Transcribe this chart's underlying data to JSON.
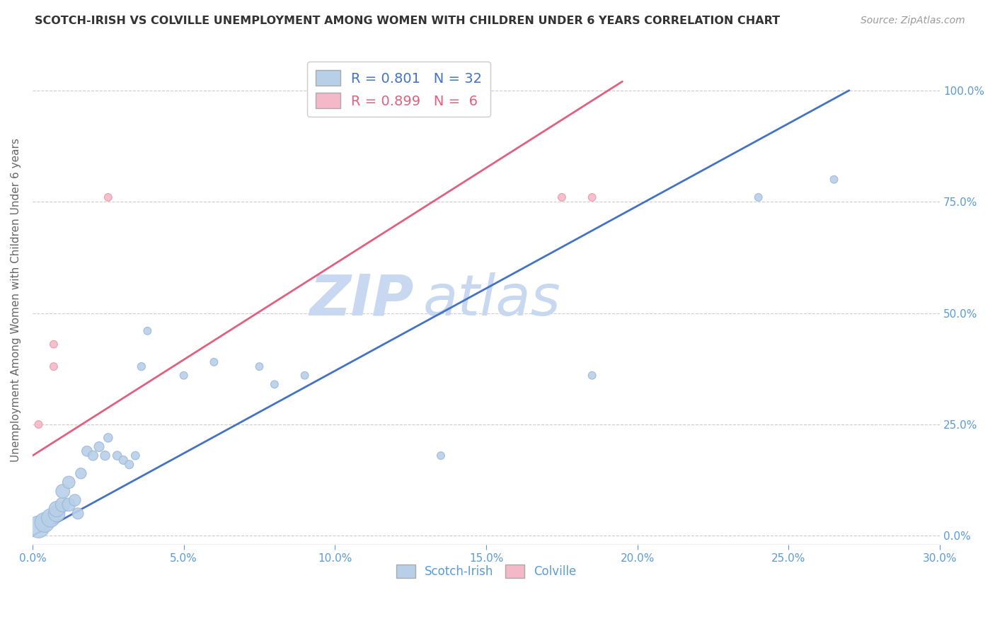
{
  "title": "SCOTCH-IRISH VS COLVILLE UNEMPLOYMENT AMONG WOMEN WITH CHILDREN UNDER 6 YEARS CORRELATION CHART",
  "source": "Source: ZipAtlas.com",
  "ylabel": "Unemployment Among Women with Children Under 6 years",
  "xlabel_ticks": [
    "0.0%",
    "5.0%",
    "10.0%",
    "15.0%",
    "20.0%",
    "25.0%",
    "30.0%"
  ],
  "xlabel_vals": [
    0.0,
    0.05,
    0.1,
    0.15,
    0.2,
    0.25,
    0.3
  ],
  "ylabel_ticks": [
    "0.0%",
    "25.0%",
    "50.0%",
    "75.0%",
    "100.0%"
  ],
  "ylabel_vals": [
    0.0,
    0.25,
    0.5,
    0.75,
    1.0
  ],
  "xlim": [
    0.0,
    0.3
  ],
  "ylim": [
    -0.02,
    1.08
  ],
  "scotch_irish_R": 0.801,
  "scotch_irish_N": 32,
  "colville_R": 0.899,
  "colville_N": 6,
  "scotch_irish_color": "#b8cfe8",
  "colville_color": "#f5b8c8",
  "scotch_irish_edge_color": "#9ab8d8",
  "colville_edge_color": "#e898a8",
  "scotch_irish_line_color": "#4472c4",
  "colville_line_color": "#e06080",
  "watermark_zip_color": "#c8d8f0",
  "watermark_atlas_color": "#c8d8f0",
  "scotch_irish_x": [
    0.002,
    0.004,
    0.006,
    0.008,
    0.008,
    0.01,
    0.01,
    0.012,
    0.012,
    0.014,
    0.015,
    0.016,
    0.018,
    0.02,
    0.022,
    0.024,
    0.025,
    0.028,
    0.03,
    0.032,
    0.034,
    0.036,
    0.038,
    0.05,
    0.06,
    0.075,
    0.08,
    0.09,
    0.135,
    0.185,
    0.24,
    0.265
  ],
  "scotch_irish_y": [
    0.02,
    0.03,
    0.04,
    0.05,
    0.06,
    0.07,
    0.1,
    0.07,
    0.12,
    0.08,
    0.05,
    0.14,
    0.19,
    0.18,
    0.2,
    0.18,
    0.22,
    0.18,
    0.17,
    0.16,
    0.18,
    0.38,
    0.46,
    0.36,
    0.39,
    0.38,
    0.34,
    0.36,
    0.18,
    0.36,
    0.76,
    0.8
  ],
  "scotch_irish_sizes": [
    500,
    400,
    350,
    280,
    250,
    220,
    200,
    180,
    160,
    140,
    130,
    120,
    110,
    100,
    100,
    90,
    80,
    80,
    75,
    75,
    70,
    65,
    60,
    60,
    60,
    60,
    60,
    60,
    60,
    60,
    60,
    60
  ],
  "colville_x": [
    0.002,
    0.007,
    0.007,
    0.025,
    0.175,
    0.185
  ],
  "colville_y": [
    0.25,
    0.38,
    0.43,
    0.76,
    0.76,
    0.76
  ],
  "colville_sizes": [
    60,
    60,
    60,
    60,
    60,
    60
  ],
  "scotch_irish_line_x": [
    0.0,
    0.27
  ],
  "scotch_irish_line_y": [
    0.0,
    1.0
  ],
  "colville_line_x": [
    0.0,
    0.195
  ],
  "colville_line_y": [
    0.18,
    1.02
  ],
  "background_color": "#ffffff",
  "grid_color": "#cccccc",
  "tick_color": "#5b9bd5",
  "title_color": "#333333",
  "legend_scotch_label": "R = 0.801   N = 32",
  "legend_colville_label": "R = 0.899   N =  6",
  "bottom_legend_scotch": "Scotch-Irish",
  "bottom_legend_colville": "Colville"
}
